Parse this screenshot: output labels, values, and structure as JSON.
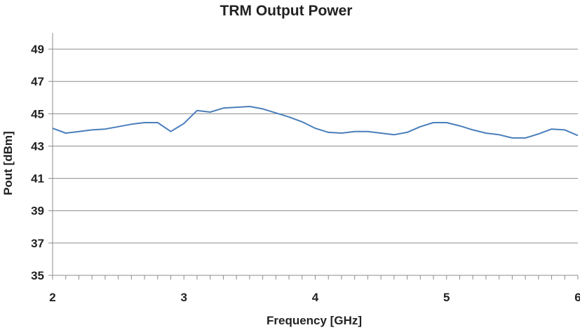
{
  "chart_data": {
    "type": "line",
    "title": "TRM Output Power",
    "xlabel": "Frequency [GHz]",
    "ylabel": "Pout [dBm]",
    "xlim": [
      2,
      6
    ],
    "ylim": [
      35,
      50
    ],
    "xticks": [
      2,
      3,
      4,
      5,
      6
    ],
    "yticks": [
      35,
      37,
      39,
      41,
      43,
      45,
      47,
      49
    ],
    "grid": true,
    "line_color": "#4a7ebb",
    "series": [
      {
        "x": [
          2.0,
          2.1,
          2.2,
          2.3,
          2.4,
          2.5,
          2.6,
          2.7,
          2.8,
          2.9,
          3.0,
          3.1,
          3.2,
          3.3,
          3.4,
          3.5,
          3.6,
          3.7,
          3.8,
          3.9,
          4.0,
          4.1,
          4.2,
          4.3,
          4.4,
          4.5,
          4.6,
          4.7,
          4.8,
          4.9,
          5.0,
          5.1,
          5.2,
          5.3,
          5.4,
          5.5,
          5.6,
          5.7,
          5.8,
          5.9,
          6.0
        ],
        "values": [
          44.1,
          43.8,
          43.9,
          44.0,
          44.05,
          44.2,
          44.35,
          44.45,
          44.45,
          43.9,
          44.4,
          45.2,
          45.1,
          45.35,
          45.4,
          45.45,
          45.3,
          45.05,
          44.8,
          44.5,
          44.1,
          43.85,
          43.8,
          43.9,
          43.9,
          43.8,
          43.7,
          43.85,
          44.2,
          44.45,
          44.45,
          44.25,
          44.0,
          43.8,
          43.7,
          43.5,
          43.5,
          43.75,
          44.05,
          44.0,
          43.65
        ]
      }
    ]
  }
}
